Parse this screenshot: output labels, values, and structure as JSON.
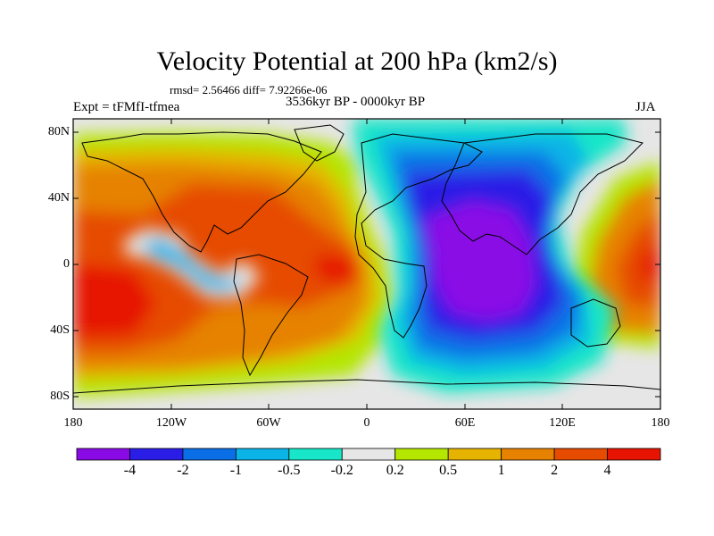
{
  "title": "Velocity Potential at 200 hPa (km2/s)",
  "stats_text": "rmsd= 2.56466 diff= 7.92266e-06",
  "left_label": "Expt = tFMfI-tfmea",
  "center_label": "3536kyr BP - 0000kyr BP",
  "right_label": "JJA",
  "map": {
    "lon_range": [
      -180,
      180
    ],
    "lat_range": [
      -90,
      90
    ],
    "y_ticks": [
      "80N",
      "40N",
      "0",
      "40S",
      "80S"
    ],
    "x_ticks": [
      "180",
      "120W",
      "60W",
      "0",
      "60E",
      "120E",
      "180"
    ]
  },
  "colorbar": {
    "labels": [
      "-4",
      "-2",
      "-1",
      "-0.5",
      "-0.2",
      "0.2",
      "0.5",
      "1",
      "2",
      "4"
    ],
    "colors": [
      "#8a0ae6",
      "#2a1ee6",
      "#0a6ee6",
      "#0ab4e6",
      "#17e6c8",
      "#e6e6e6",
      "#b4e600",
      "#e6b400",
      "#e68200",
      "#e64b00",
      "#e61400"
    ]
  }
}
